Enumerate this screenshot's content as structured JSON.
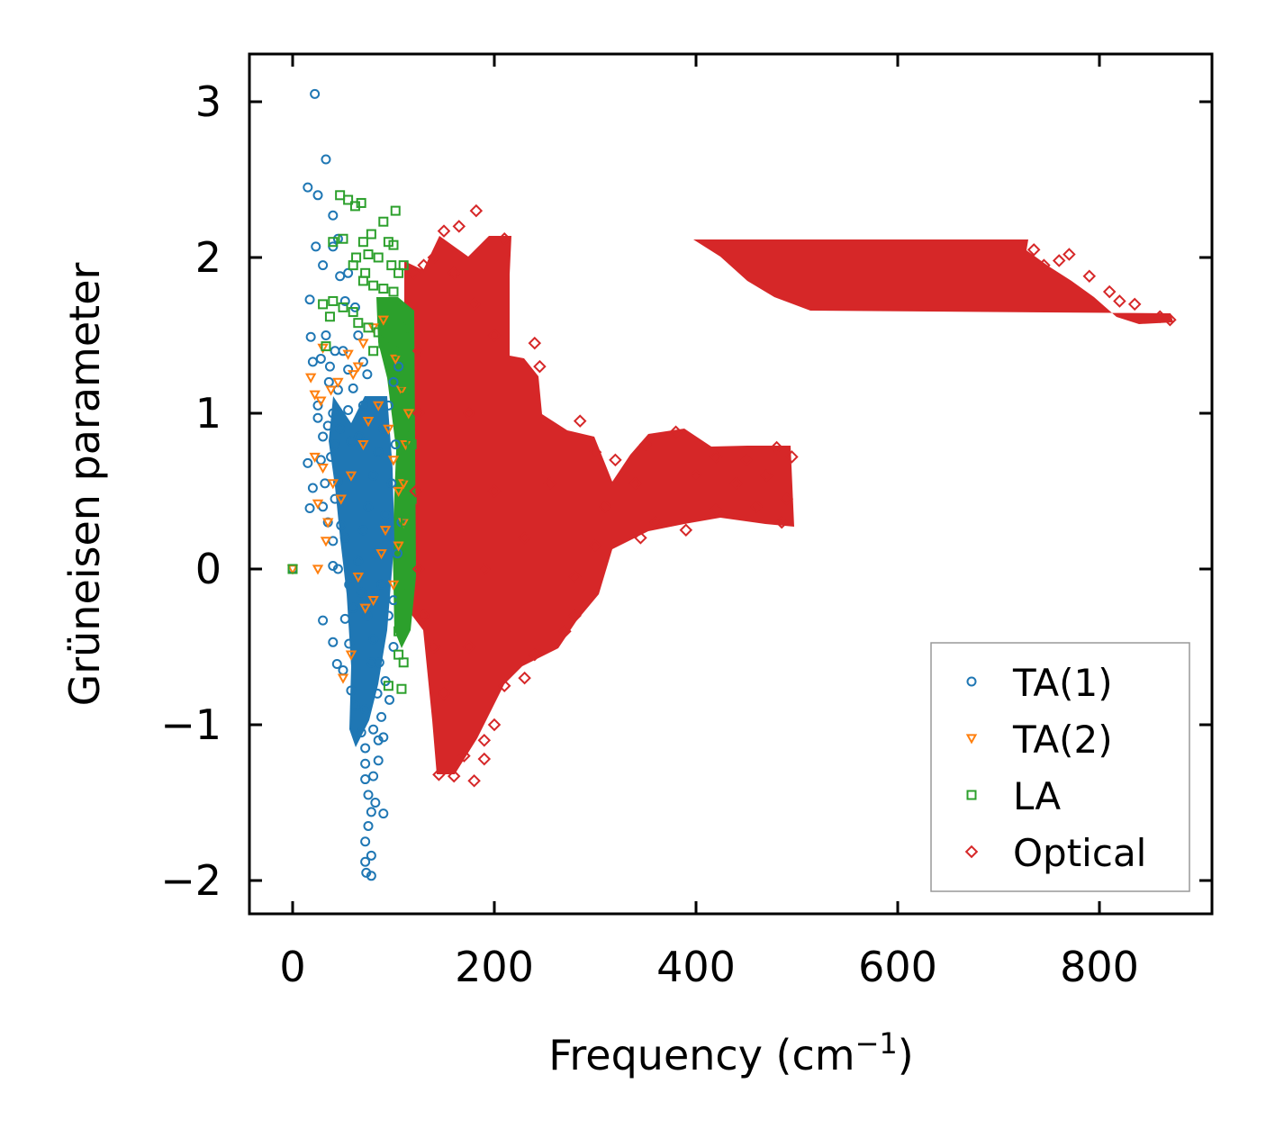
{
  "chart_data": {
    "type": "scatter",
    "title": "",
    "xlabel": "Frequency (cm",
    "xlabel_sup": "−1",
    "xlabel_tail": ")",
    "ylabel": "Grüneisen parameter",
    "xlim": [
      -43,
      910
    ],
    "ylim": [
      -2.22,
      3.3
    ],
    "xticks": [
      0,
      200,
      400,
      600,
      800
    ],
    "xtick_labels": [
      "0",
      "200",
      "400",
      "600",
      "800"
    ],
    "yticks": [
      -2,
      -1,
      0,
      1,
      2,
      3
    ],
    "ytick_labels": [
      "−2",
      "−1",
      "0",
      "1",
      "2",
      "3"
    ],
    "grid": false,
    "legend_position": "bottom-right",
    "colors": {
      "ta1": "#1f77b4",
      "ta2": "#ff7f0e",
      "la": "#2ca02c",
      "optical": "#d62728"
    },
    "series": [
      {
        "name": "TA(1)",
        "marker": "circle",
        "color": "#1f77b4",
        "points": [
          [
            0,
            0
          ],
          [
            22,
            3.05
          ],
          [
            33,
            2.63
          ],
          [
            15,
            2.45
          ],
          [
            25,
            2.4
          ],
          [
            40,
            2.27
          ],
          [
            45,
            2.12
          ],
          [
            23,
            2.07
          ],
          [
            40,
            2.07
          ],
          [
            30,
            1.95
          ],
          [
            47,
            1.88
          ],
          [
            55,
            1.9
          ],
          [
            17,
            1.73
          ],
          [
            52,
            1.72
          ],
          [
            62,
            1.68
          ],
          [
            18,
            1.49
          ],
          [
            33,
            1.5
          ],
          [
            42,
            1.4
          ],
          [
            50,
            1.4
          ],
          [
            65,
            1.5
          ],
          [
            20,
            1.33
          ],
          [
            28,
            1.35
          ],
          [
            37,
            1.3
          ],
          [
            55,
            1.28
          ],
          [
            70,
            1.33
          ],
          [
            36,
            1.2
          ],
          [
            45,
            1.15
          ],
          [
            60,
            1.16
          ],
          [
            25,
            1.05
          ],
          [
            40,
            1.0
          ],
          [
            55,
            1.02
          ],
          [
            25,
            0.97
          ],
          [
            35,
            0.92
          ],
          [
            47,
            0.9
          ],
          [
            30,
            0.85
          ],
          [
            42,
            0.8
          ],
          [
            58,
            0.82
          ],
          [
            15,
            0.68
          ],
          [
            28,
            0.7
          ],
          [
            38,
            0.72
          ],
          [
            20,
            0.52
          ],
          [
            32,
            0.55
          ],
          [
            45,
            0.56
          ],
          [
            17,
            0.39
          ],
          [
            30,
            0.4
          ],
          [
            42,
            0.45
          ],
          [
            35,
            0.3
          ],
          [
            48,
            0.28
          ],
          [
            40,
            0.18
          ],
          [
            52,
            0.2
          ],
          [
            45,
            0.0
          ],
          [
            40,
            0.02
          ],
          [
            56,
            -0.1
          ],
          [
            60,
            -0.25
          ],
          [
            30,
            -0.33
          ],
          [
            52,
            -0.32
          ],
          [
            40,
            -0.47
          ],
          [
            56,
            -0.48
          ],
          [
            44,
            -0.61
          ],
          [
            50,
            -0.65
          ],
          [
            58,
            -0.78
          ],
          [
            62,
            -0.88
          ],
          [
            72,
            -0.9
          ],
          [
            68,
            -1.05
          ],
          [
            80,
            -1.03
          ],
          [
            72,
            -1.15
          ],
          [
            85,
            -1.1
          ],
          [
            90,
            -1.08
          ],
          [
            72,
            -1.25
          ],
          [
            85,
            -1.23
          ],
          [
            72,
            -1.35
          ],
          [
            80,
            -1.33
          ],
          [
            75,
            -1.45
          ],
          [
            82,
            -1.5
          ],
          [
            90,
            -1.57
          ],
          [
            78,
            -1.56
          ],
          [
            75,
            -1.65
          ],
          [
            72,
            -1.75
          ],
          [
            78,
            -1.84
          ],
          [
            72,
            -1.88
          ],
          [
            78,
            -1.97
          ],
          [
            73,
            -1.95
          ],
          [
            65,
            0.05
          ],
          [
            70,
            0.25
          ],
          [
            75,
            0.4
          ],
          [
            80,
            0.6
          ],
          [
            85,
            0.75
          ],
          [
            90,
            0.9
          ],
          [
            95,
            1.05
          ],
          [
            100,
            1.2
          ],
          [
            105,
            1.3
          ],
          [
            68,
            -0.15
          ],
          [
            74,
            -0.3
          ],
          [
            80,
            -0.45
          ],
          [
            86,
            -0.6
          ],
          [
            92,
            -0.72
          ],
          [
            96,
            -0.84
          ],
          [
            100,
            -0.5
          ],
          [
            95,
            -0.3
          ],
          [
            88,
            -0.1
          ],
          [
            82,
            0.1
          ],
          [
            78,
            -0.6
          ],
          [
            84,
            -0.8
          ],
          [
            88,
            -0.95
          ],
          [
            92,
            0.35
          ],
          [
            98,
            0.55
          ],
          [
            102,
            0.8
          ],
          [
            62,
            0.6
          ],
          [
            66,
            0.85
          ],
          [
            70,
            1.05
          ],
          [
            74,
            1.25
          ],
          [
            100,
            -0.2
          ],
          [
            104,
            0.1
          ],
          [
            108,
            0.3
          ]
        ]
      },
      {
        "name": "TA(2)",
        "marker": "triangle",
        "color": "#ff7f0e",
        "points": [
          [
            0,
            0
          ],
          [
            25,
            0.0
          ],
          [
            30,
            1.42
          ],
          [
            18,
            1.23
          ],
          [
            22,
            1.12
          ],
          [
            28,
            1.08
          ],
          [
            38,
            1.15
          ],
          [
            45,
            1.2
          ],
          [
            55,
            1.38
          ],
          [
            60,
            1.25
          ],
          [
            65,
            1.3
          ],
          [
            22,
            0.72
          ],
          [
            30,
            0.65
          ],
          [
            25,
            0.42
          ],
          [
            35,
            0.3
          ],
          [
            33,
            0.18
          ],
          [
            40,
            0.55
          ],
          [
            48,
            0.45
          ],
          [
            58,
            0.6
          ],
          [
            70,
            0.8
          ],
          [
            75,
            0.95
          ],
          [
            85,
            1.05
          ],
          [
            95,
            0.9
          ],
          [
            100,
            0.7
          ],
          [
            105,
            0.5
          ],
          [
            110,
            0.3
          ],
          [
            65,
            -0.05
          ],
          [
            72,
            -0.25
          ],
          [
            50,
            -0.7
          ],
          [
            58,
            -0.55
          ],
          [
            80,
            -0.2
          ],
          [
            88,
            0.1
          ],
          [
            92,
            0.25
          ],
          [
            100,
            -0.1
          ],
          [
            105,
            0.15
          ],
          [
            110,
            0.55
          ],
          [
            112,
            0.8
          ],
          [
            115,
            1.0
          ],
          [
            108,
            1.15
          ],
          [
            102,
            1.35
          ],
          [
            70,
            1.45
          ],
          [
            80,
            1.55
          ],
          [
            90,
            1.6
          ]
        ]
      },
      {
        "name": "LA",
        "marker": "square",
        "color": "#2ca02c",
        "points": [
          [
            0,
            0
          ],
          [
            47,
            2.4
          ],
          [
            55,
            2.37
          ],
          [
            62,
            2.33
          ],
          [
            68,
            2.35
          ],
          [
            102,
            2.3
          ],
          [
            90,
            2.23
          ],
          [
            78,
            2.15
          ],
          [
            50,
            2.12
          ],
          [
            40,
            2.1
          ],
          [
            70,
            2.1
          ],
          [
            95,
            2.1
          ],
          [
            100,
            2.08
          ],
          [
            63,
            2.0
          ],
          [
            75,
            2.02
          ],
          [
            85,
            2.0
          ],
          [
            60,
            1.95
          ],
          [
            72,
            1.9
          ],
          [
            98,
            1.95
          ],
          [
            105,
            1.9
          ],
          [
            110,
            1.95
          ],
          [
            70,
            1.85
          ],
          [
            80,
            1.82
          ],
          [
            90,
            1.8
          ],
          [
            100,
            1.78
          ],
          [
            40,
            1.72
          ],
          [
            50,
            1.68
          ],
          [
            60,
            1.65
          ],
          [
            30,
            1.7
          ],
          [
            37,
            1.62
          ],
          [
            65,
            1.58
          ],
          [
            75,
            1.55
          ],
          [
            85,
            1.52
          ],
          [
            33,
            1.43
          ],
          [
            80,
            1.4
          ],
          [
            90,
            1.45
          ],
          [
            100,
            1.42
          ],
          [
            110,
            1.5
          ],
          [
            115,
            1.55
          ],
          [
            110,
            1.2
          ],
          [
            112,
            0.9
          ],
          [
            115,
            0.6
          ],
          [
            112,
            0.3
          ],
          [
            110,
            0.0
          ],
          [
            108,
            -0.2
          ],
          [
            105,
            -0.4
          ],
          [
            105,
            -0.55
          ],
          [
            110,
            -0.6
          ],
          [
            95,
            -0.75
          ],
          [
            108,
            -0.77
          ],
          [
            115,
            0.15
          ],
          [
            115,
            1.3
          ],
          [
            112,
            1.1
          ],
          [
            108,
            1.4
          ],
          [
            118,
            0.8
          ],
          [
            118,
            0.45
          ],
          [
            116,
            -0.1
          ]
        ]
      },
      {
        "name": "Optical",
        "marker": "diamond",
        "color": "#d62728",
        "points": [
          [
            182,
            2.3
          ],
          [
            150,
            2.17
          ],
          [
            165,
            2.2
          ],
          [
            130,
            1.95
          ],
          [
            140,
            2.0
          ],
          [
            210,
            2.12
          ],
          [
            120,
            1.9
          ],
          [
            240,
            1.45
          ],
          [
            245,
            1.3
          ],
          [
            285,
            0.95
          ],
          [
            300,
            0.75
          ],
          [
            320,
            0.7
          ],
          [
            350,
            0.8
          ],
          [
            380,
            0.88
          ],
          [
            420,
            0.72
          ],
          [
            450,
            0.7
          ],
          [
            480,
            0.78
          ],
          [
            495,
            0.72
          ],
          [
            490,
            0.45
          ],
          [
            485,
            0.3
          ],
          [
            460,
            0.4
          ],
          [
            420,
            0.38
          ],
          [
            390,
            0.25
          ],
          [
            360,
            0.3
          ],
          [
            345,
            0.2
          ],
          [
            300,
            0.15
          ],
          [
            280,
            -0.05
          ],
          [
            280,
            -0.3
          ],
          [
            270,
            -0.4
          ],
          [
            240,
            -0.55
          ],
          [
            230,
            -0.7
          ],
          [
            210,
            -0.75
          ],
          [
            200,
            -1.0
          ],
          [
            190,
            -1.1
          ],
          [
            170,
            -1.2
          ],
          [
            145,
            -1.32
          ],
          [
            160,
            -1.33
          ],
          [
            180,
            -1.36
          ],
          [
            190,
            -1.22
          ],
          [
            150,
            -0.8
          ],
          [
            140,
            -0.5
          ],
          [
            130,
            -0.3
          ],
          [
            125,
            0.0
          ],
          [
            122,
            0.5
          ],
          [
            125,
            1.0
          ],
          [
            125,
            1.4
          ],
          [
            160,
            1.9
          ],
          [
            180,
            1.7
          ],
          [
            200,
            1.5
          ],
          [
            175,
            1.0
          ],
          [
            200,
            0.5
          ],
          [
            190,
            0.0
          ],
          [
            175,
            -0.5
          ],
          [
            230,
            0.2
          ],
          [
            255,
            0.55
          ],
          [
            310,
            0.4
          ],
          [
            340,
            0.55
          ],
          [
            400,
            0.6
          ],
          [
            440,
            0.55
          ],
          [
            470,
            0.6
          ],
          [
            735,
            2.05
          ],
          [
            760,
            1.98
          ],
          [
            790,
            1.88
          ],
          [
            810,
            1.78
          ],
          [
            835,
            1.7
          ],
          [
            860,
            1.62
          ],
          [
            870,
            1.6
          ],
          [
            745,
            1.95
          ],
          [
            770,
            2.02
          ],
          [
            820,
            1.72
          ]
        ]
      }
    ]
  }
}
